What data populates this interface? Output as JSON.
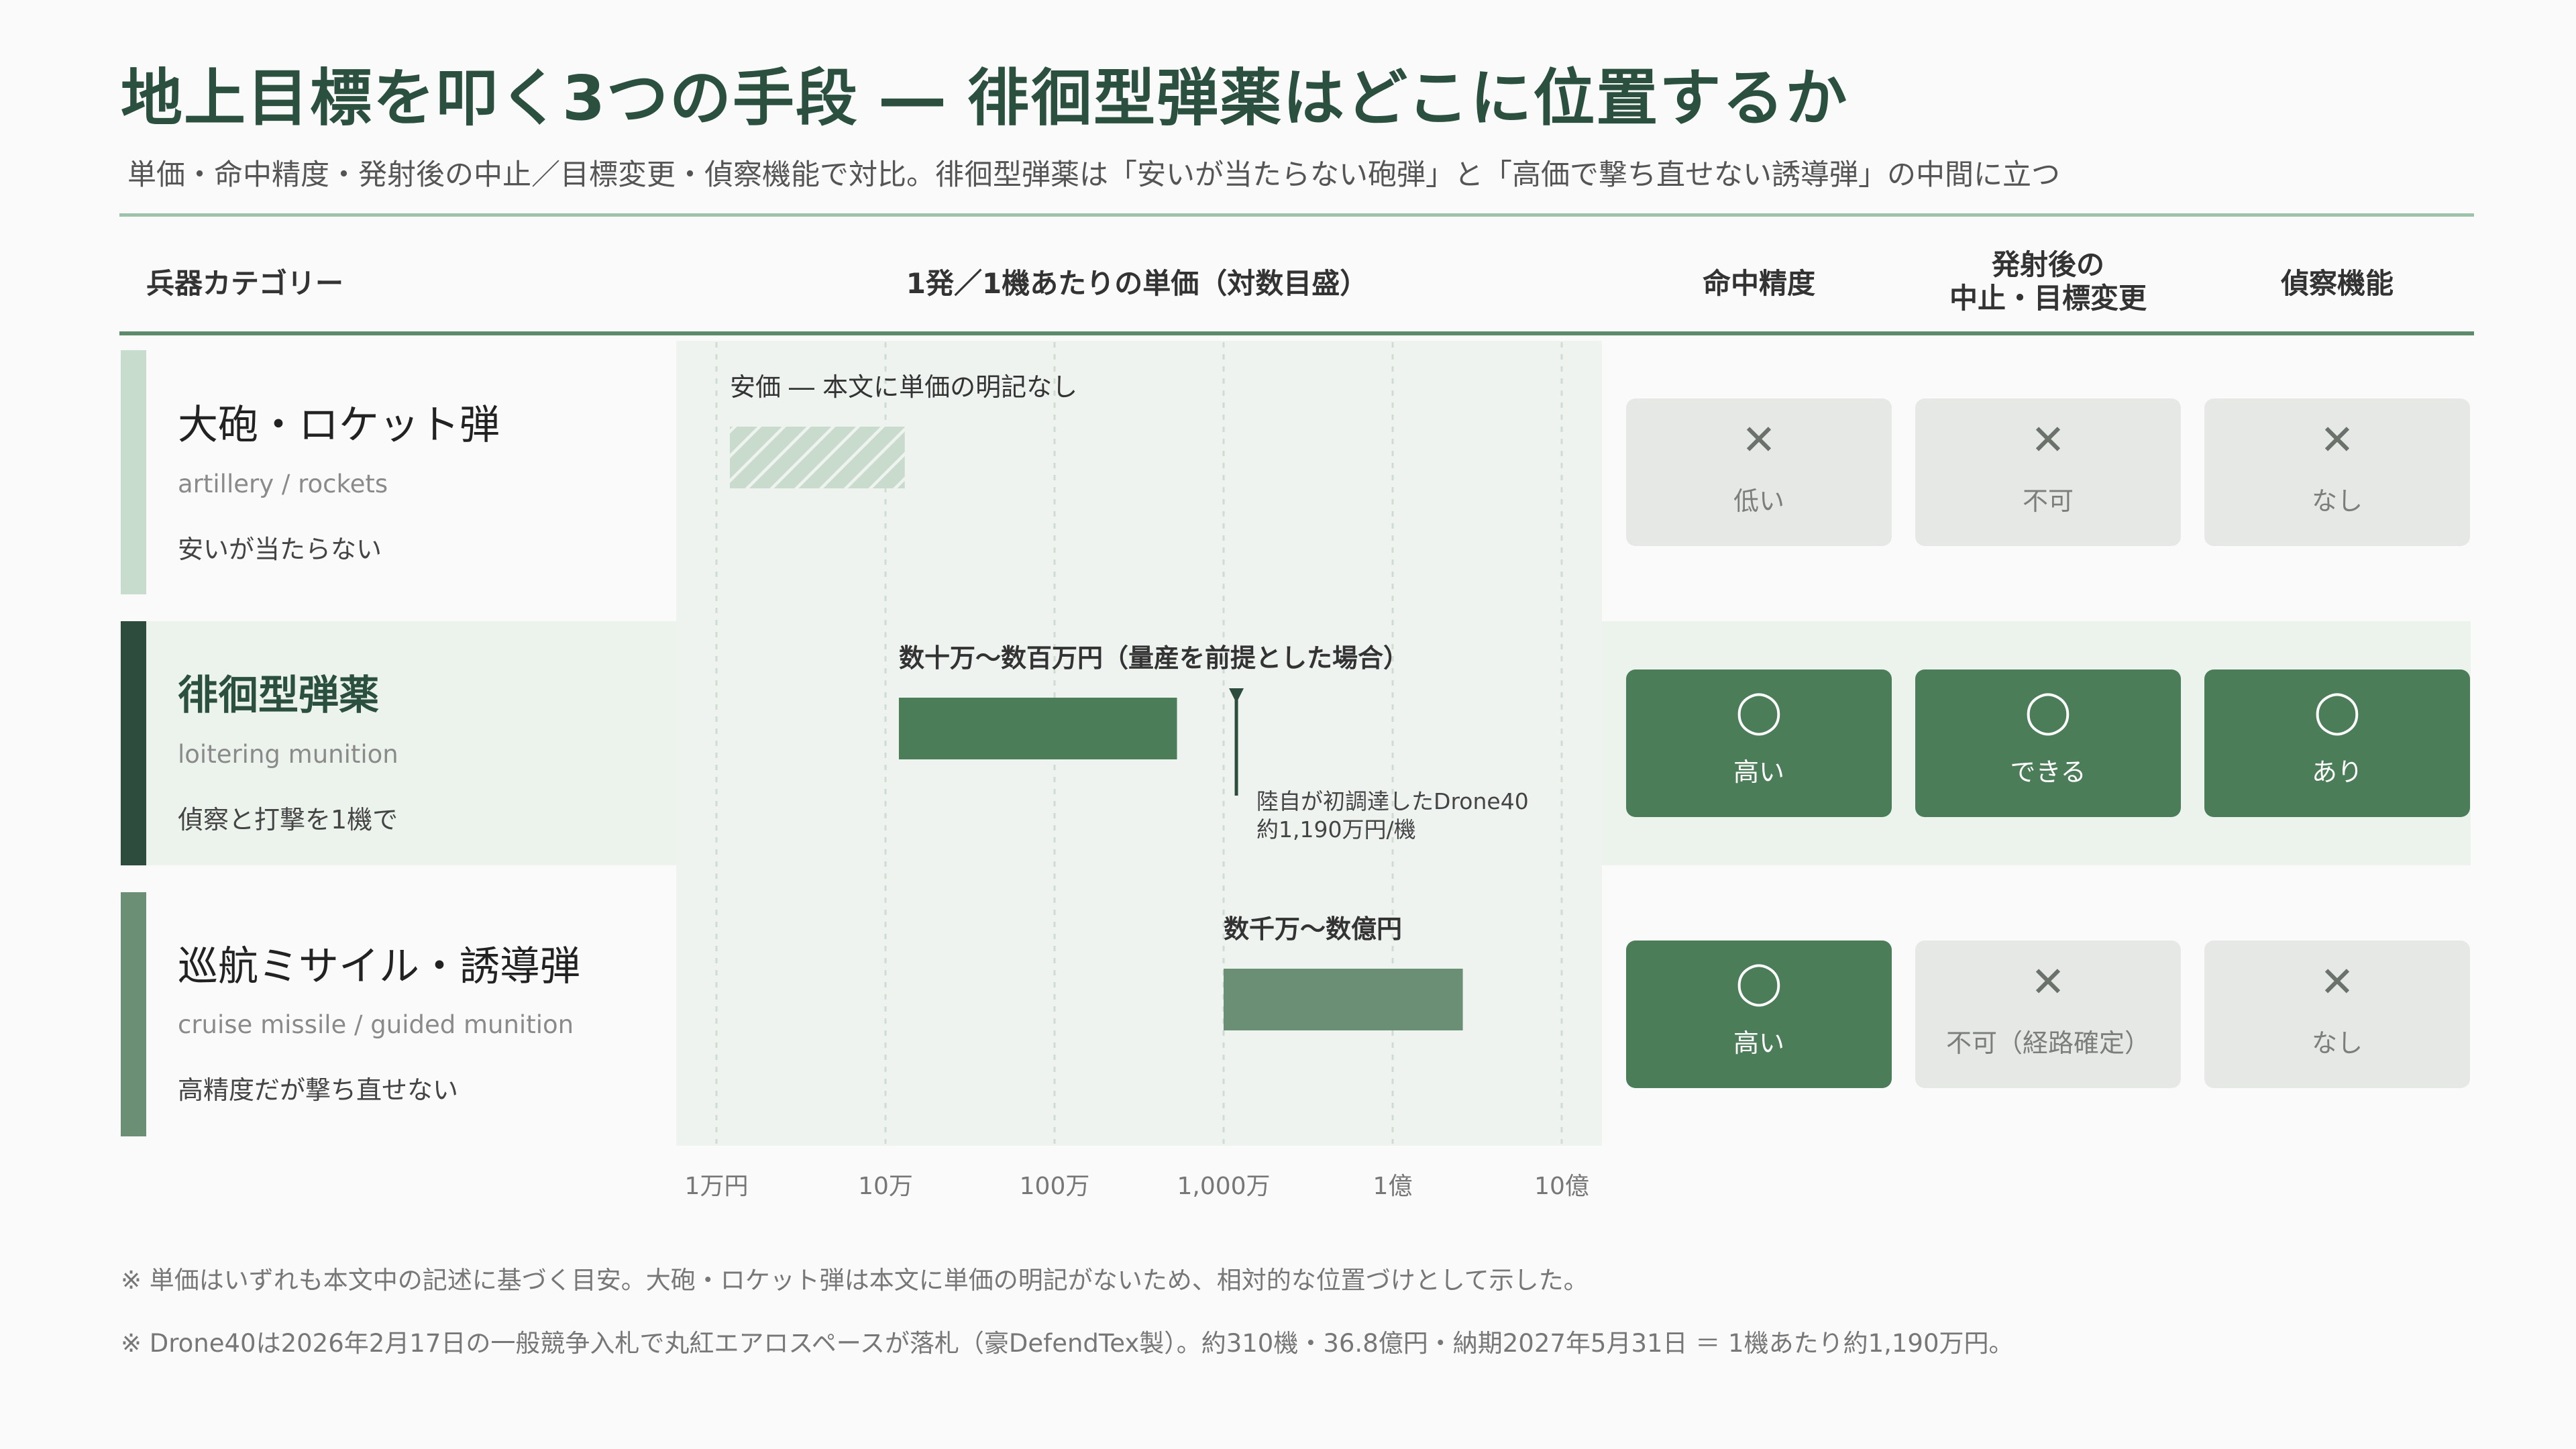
{
  "title": "地上目標を叩く3つの手段 ― 徘徊型弾薬はどこに位置するか",
  "subtitle": "単価・命中精度・発射後の中止／目標変更・偵察機能で対比。徘徊型弾薬は「安いが当たらない砲弾」と「高価で撃ち直せない誘導弾」の中間に立つ",
  "headers": {
    "category": "兵器カテゴリー",
    "price": "1発／1機あたりの単価（対数目盛）",
    "accuracy": "命中精度",
    "abort_line1": "発射後の",
    "abort_line2": "中止・目標変更",
    "recon": "偵察機能"
  },
  "rows": [
    {
      "name": "大砲・ロケット弾",
      "en": "artillery / rockets",
      "note": "安いが当たらない",
      "color": "#c8dccd",
      "accuracy": {
        "symbol": "✕",
        "label": "低い",
        "good": false
      },
      "abort": {
        "symbol": "✕",
        "label": "不可",
        "good": false
      },
      "recon": {
        "symbol": "✕",
        "label": "なし",
        "good": false
      }
    },
    {
      "name": "徘徊型弾薬",
      "en": "loitering munition",
      "note": "偵察と打撃を1機で",
      "color": "#2e4c3d",
      "accuracy": {
        "symbol": "◯",
        "label": "高い",
        "good": true
      },
      "abort": {
        "symbol": "◯",
        "label": "できる",
        "good": true
      },
      "recon": {
        "symbol": "◯",
        "label": "あり",
        "good": true
      }
    },
    {
      "name": "巡航ミサイル・誘導弾",
      "en": "cruise missile / guided munition",
      "note": "高精度だが撃ち直せない",
      "color": "#6b8f74",
      "accuracy": {
        "symbol": "◯",
        "label": "高い",
        "good": true
      },
      "abort": {
        "symbol": "✕",
        "label": "不可（経路確定）",
        "good": false
      },
      "recon": {
        "symbol": "✕",
        "label": "なし",
        "good": false
      }
    }
  ],
  "chart_data": {
    "type": "bar",
    "title": "1発／1機あたりの単価（対数目盛）",
    "scale": "log",
    "xlim": [
      10000,
      1000000000
    ],
    "tick_values": [
      10000,
      100000,
      1000000,
      10000000,
      100000000,
      1000000000
    ],
    "tick_labels": [
      "1万円",
      "10万",
      "100万",
      "1,000万",
      "1億",
      "10億"
    ],
    "grid": true,
    "series": [
      {
        "category": "大砲・ロケット弾",
        "range": [
          12000,
          130000
        ],
        "label": "安価 ― 本文に単価の明記なし",
        "hatched": true,
        "color": "#bcd3c1"
      },
      {
        "category": "徘徊型弾薬",
        "range": [
          120000,
          5300000
        ],
        "label": "数十万〜数百万円（量産を前提とした場合）",
        "hatched": false,
        "color": "#4b7d58"
      },
      {
        "category": "巡航ミサイル・誘導弾",
        "range": [
          10000000,
          260000000
        ],
        "label": "数千万〜数億円",
        "hatched": false,
        "color": "#6b8f74"
      }
    ],
    "marker": {
      "value": 11900000,
      "row": 1,
      "label_line1": "陸自が初調達したDrone40",
      "label_line2": "約1,190万円/機"
    }
  },
  "footnotes": [
    "※ 単価はいずれも本文中の記述に基づく目安。大砲・ロケット弾は本文に単価の明記がないため、相対的な位置づけとして示した。",
    "※ Drone40は2026年2月17日の一般競争入札で丸紅エアロスペースが落札（豪DefendTex製）。約310機・36.8億円・納期2027年5月31日 ＝ 1機あたり約1,190万円。"
  ]
}
